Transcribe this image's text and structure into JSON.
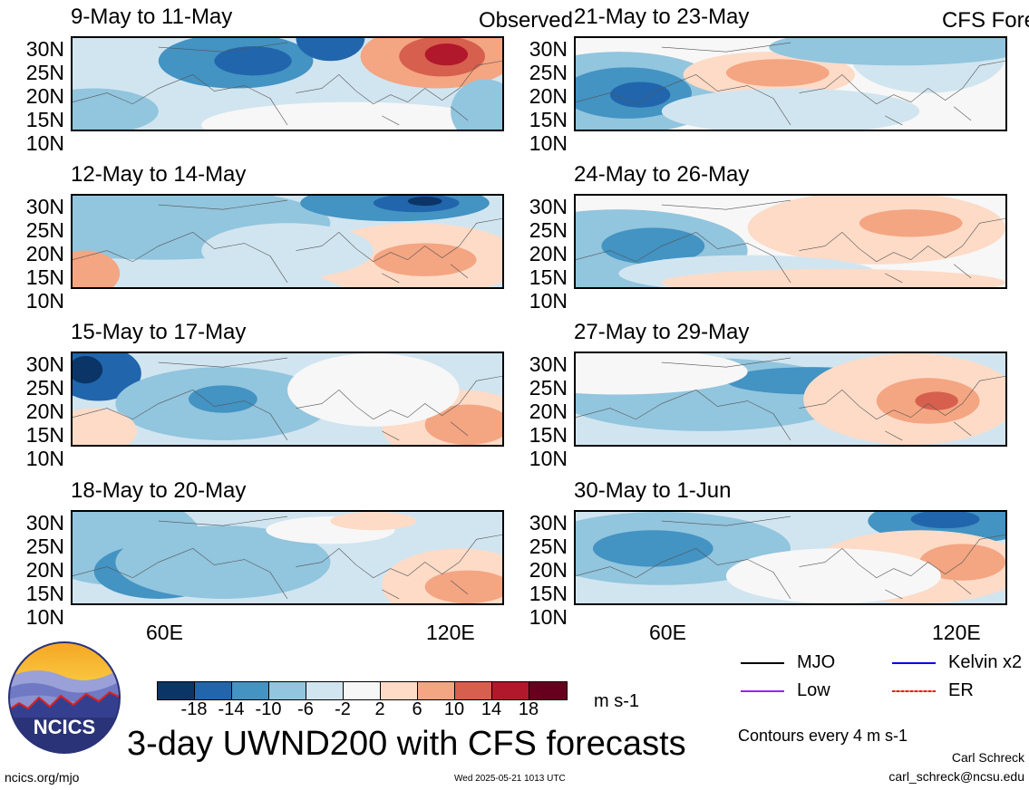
{
  "panels": [
    {
      "title": "9-May to 11-May",
      "tag": "Observed"
    },
    {
      "title": "21-May to 23-May",
      "tag": "CFS Forecast"
    },
    {
      "title": "12-May to 14-May",
      "tag": ""
    },
    {
      "title": "24-May to 26-May",
      "tag": ""
    },
    {
      "title": "15-May to 17-May",
      "tag": ""
    },
    {
      "title": "27-May to 29-May",
      "tag": ""
    },
    {
      "title": "18-May to 20-May",
      "tag": ""
    },
    {
      "title": "30-May to 1-Jun",
      "tag": ""
    }
  ],
  "lat_labels": [
    "30N",
    "25N",
    "20N",
    "15N",
    "10N"
  ],
  "lon_labels": [
    "60E",
    "120E"
  ],
  "colorbar": {
    "colors": [
      "#0b3567",
      "#2166ac",
      "#4393c3",
      "#92c5de",
      "#d1e5f0",
      "#f7f7f7",
      "#fddbc7",
      "#f4a582",
      "#d6604d",
      "#b2182b",
      "#67001f"
    ],
    "ticks": [
      "-18",
      "-14",
      "-10",
      "-6",
      "-2",
      "2",
      "6",
      "10",
      "14",
      "18"
    ],
    "units": "m s-1"
  },
  "legend": [
    {
      "label": "MJO",
      "color": "#000000"
    },
    {
      "label": "Kelvin x2",
      "color": "#0000ee"
    },
    {
      "label": "Low",
      "color": "#a020f0"
    },
    {
      "label": "ER",
      "color": "#e0201a"
    }
  ],
  "contour_note": "Contours every 4 m s-1",
  "main_title": "3-day UWND200 with CFS forecasts",
  "logo_text": "NCICS",
  "author": "Carl Schreck",
  "email": "carl_schreck@ncsu.edu",
  "website": "ncics.org/mjo",
  "timestamp": "Wed 2025-05-21 1013 UTC"
}
